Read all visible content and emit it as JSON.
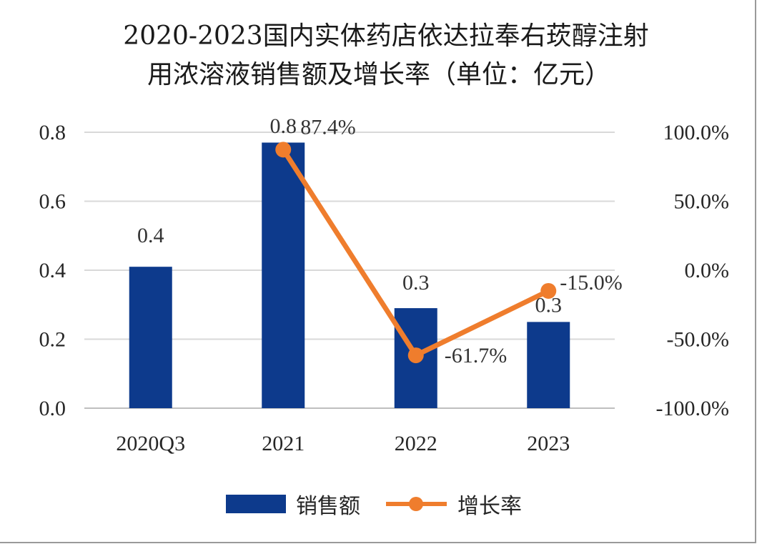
{
  "chart_data": {
    "type": "bar+line",
    "title_line1": "2020-2023国内实体药店依达拉奉右莰醇注射",
    "title_line2": "用浓溶液销售额及增长率（单位：亿元）",
    "categories": [
      "2020Q3",
      "2021",
      "2022",
      "2023"
    ],
    "series": [
      {
        "name": "销售额",
        "type": "bar",
        "axis": "left",
        "values": [
          0.41,
          0.77,
          0.29,
          0.25
        ],
        "labels": [
          "0.4",
          "0.8",
          "0.3",
          "0.3"
        ],
        "color": "#0d3a8c"
      },
      {
        "name": "增长率",
        "type": "line",
        "axis": "right",
        "values": [
          null,
          87.4,
          -61.7,
          -15.0
        ],
        "labels": [
          "",
          "87.4%",
          "-61.7%",
          "-15.0%"
        ],
        "color": "#ef7d2d"
      }
    ],
    "y_left": {
      "min": 0,
      "max": 0.8,
      "ticks": [
        "0.0",
        "0.2",
        "0.4",
        "0.6",
        "0.8"
      ]
    },
    "y_right": {
      "min": -100,
      "max": 100,
      "ticks": [
        "-100.0%",
        "-50.0%",
        "0.0%",
        "50.0%",
        "100.0%"
      ]
    },
    "grid": true,
    "legend_position": "bottom"
  }
}
